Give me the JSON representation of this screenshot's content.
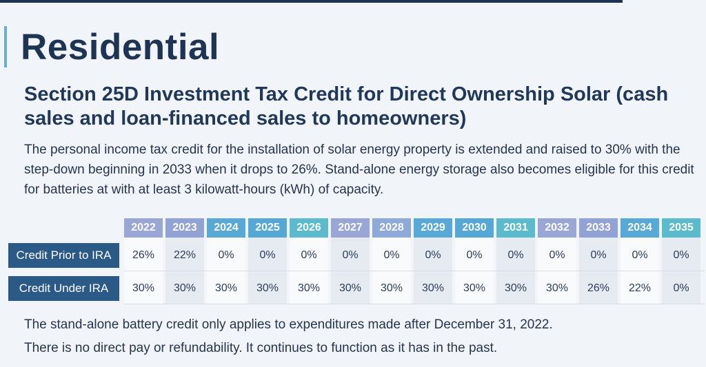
{
  "heading": "Residential",
  "subtitle": "Section 25D Investment Tax Credit for Direct Ownership Solar (cash sales and loan-financed sales to homeowners)",
  "intro": "The personal income tax credit for the installation of solar energy property is extended and raised to 30% with the step-down beginning in 2033 when it drops to 26%. Stand-alone energy storage also becomes eligible for this credit for batteries at with at least 3 kilowatt-hours (kWh) of capacity.",
  "table": {
    "years": [
      "2022",
      "2023",
      "2024",
      "2025",
      "2026",
      "2027",
      "2028",
      "2029",
      "2030",
      "2031",
      "2032",
      "2033",
      "2034",
      "2035"
    ],
    "year_colors": [
      "#9aa6d6",
      "#93a2d4",
      "#58a9d6",
      "#55a7d6",
      "#5bbacb",
      "#9aa6d6",
      "#8fa9d8",
      "#58a9d6",
      "#55a8d6",
      "#5bbacb",
      "#9aa6d6",
      "#93a2d4",
      "#58a9d6",
      "#5bbacb"
    ],
    "rows": [
      {
        "label": "Credit Prior to IRA",
        "values": [
          "26%",
          "22%",
          "0%",
          "0%",
          "0%",
          "0%",
          "0%",
          "0%",
          "0%",
          "0%",
          "0%",
          "0%",
          "0%",
          "0%"
        ]
      },
      {
        "label": "Credit Under IRA",
        "values": [
          "30%",
          "30%",
          "30%",
          "30%",
          "30%",
          "30%",
          "30%",
          "30%",
          "30%",
          "30%",
          "30%",
          "26%",
          "22%",
          "0%"
        ]
      }
    ]
  },
  "footer": {
    "line1": "The stand-alone battery credit only applies to expenditures made after December 31, 2022.",
    "line2": "There is no direct pay or refundability. It continues to function as it has in the past."
  },
  "colors": {
    "navy": "#1f3454",
    "label_bg": "#2b5a87",
    "accent": "#6aaed6"
  }
}
